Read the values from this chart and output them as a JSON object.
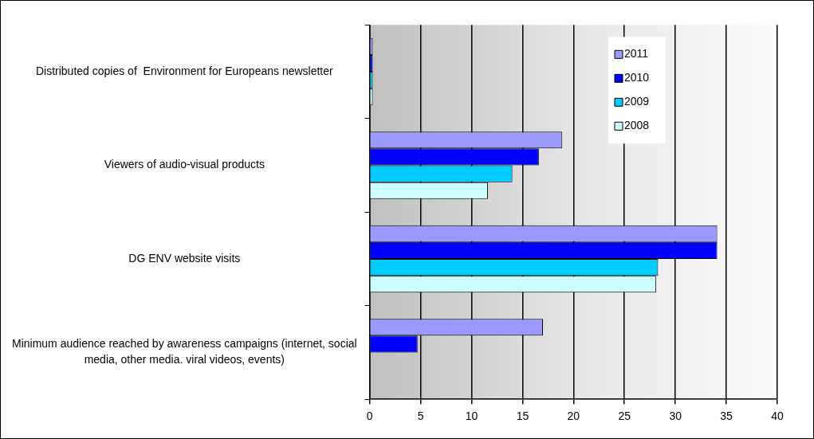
{
  "chart_data": {
    "type": "bar",
    "orientation": "horizontal",
    "categories": [
      "Distributed copies of  Environment for Europeans newsletter",
      "Viewers of audio-visual products",
      "DG ENV website visits",
      "Minimum audience reached by awareness campaigns (internet, social media, other media. viral videos, events)"
    ],
    "series": [
      {
        "name": "2011",
        "color": "#9999ff",
        "values": [
          0.3,
          18.9,
          34.1,
          17.0
        ]
      },
      {
        "name": "2010",
        "color": "#0000ff",
        "values": [
          0.3,
          16.6,
          34.1,
          4.7
        ]
      },
      {
        "name": "2009",
        "color": "#00ccff",
        "values": [
          0.3,
          14.0,
          28.3,
          null
        ]
      },
      {
        "name": "2008",
        "color": "#ccffff",
        "values": [
          0.3,
          11.6,
          28.1,
          null
        ]
      }
    ],
    "xlim": [
      0,
      40
    ],
    "xticks": [
      0,
      5,
      10,
      15,
      20,
      25,
      30,
      35,
      40
    ],
    "grid": "x",
    "legend": "top right"
  }
}
